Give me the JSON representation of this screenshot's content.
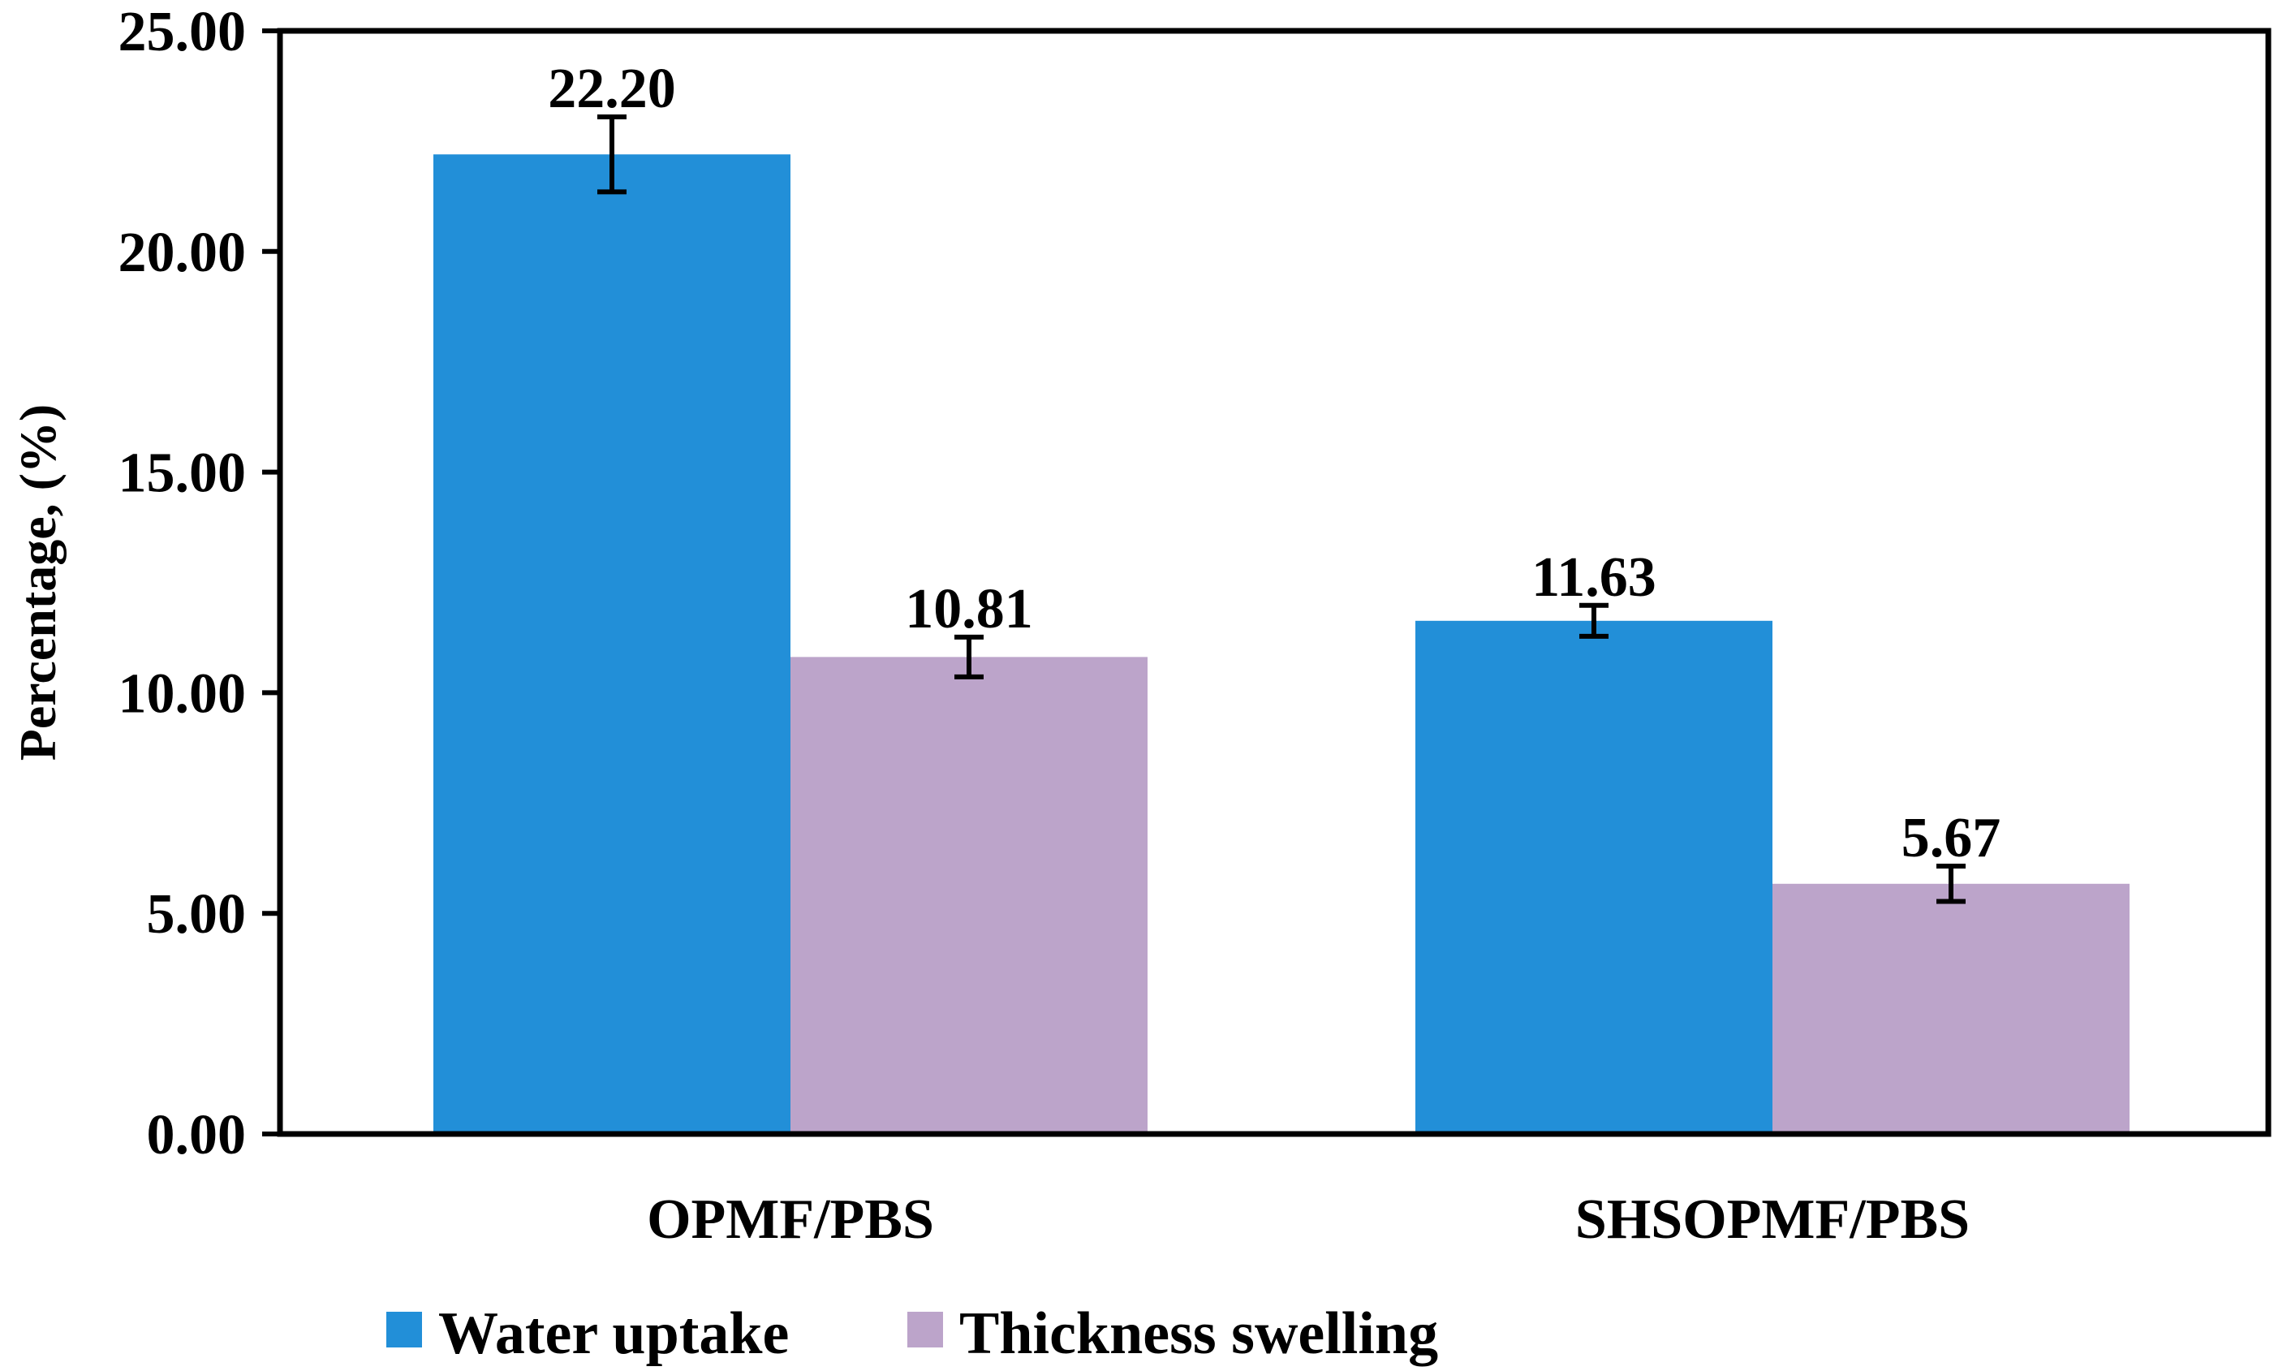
{
  "chart_data": {
    "type": "bar",
    "title": "",
    "xlabel": "",
    "ylabel": "Percentage, (%)",
    "ylim": [
      0,
      25
    ],
    "yticks": [
      0,
      5,
      10,
      15,
      20,
      25
    ],
    "ytick_labels": [
      "0.00",
      "5.00",
      "10.00",
      "15.00",
      "20.00",
      "25.00"
    ],
    "categories": [
      "OPMF/PBS",
      "SHSOPMF/PBS"
    ],
    "series": [
      {
        "name": "Water uptake",
        "color": "#228fd8",
        "values": [
          22.2,
          11.63
        ],
        "errors": [
          0.85,
          0.35
        ],
        "labels": [
          "22.20",
          "11.63"
        ]
      },
      {
        "name": "Thickness swelling",
        "color": "#bca4ca",
        "values": [
          10.81,
          5.67
        ],
        "errors": [
          0.45,
          0.4
        ],
        "labels": [
          "10.81",
          "5.67"
        ]
      }
    ],
    "grid": false,
    "legend_position": "bottom"
  }
}
